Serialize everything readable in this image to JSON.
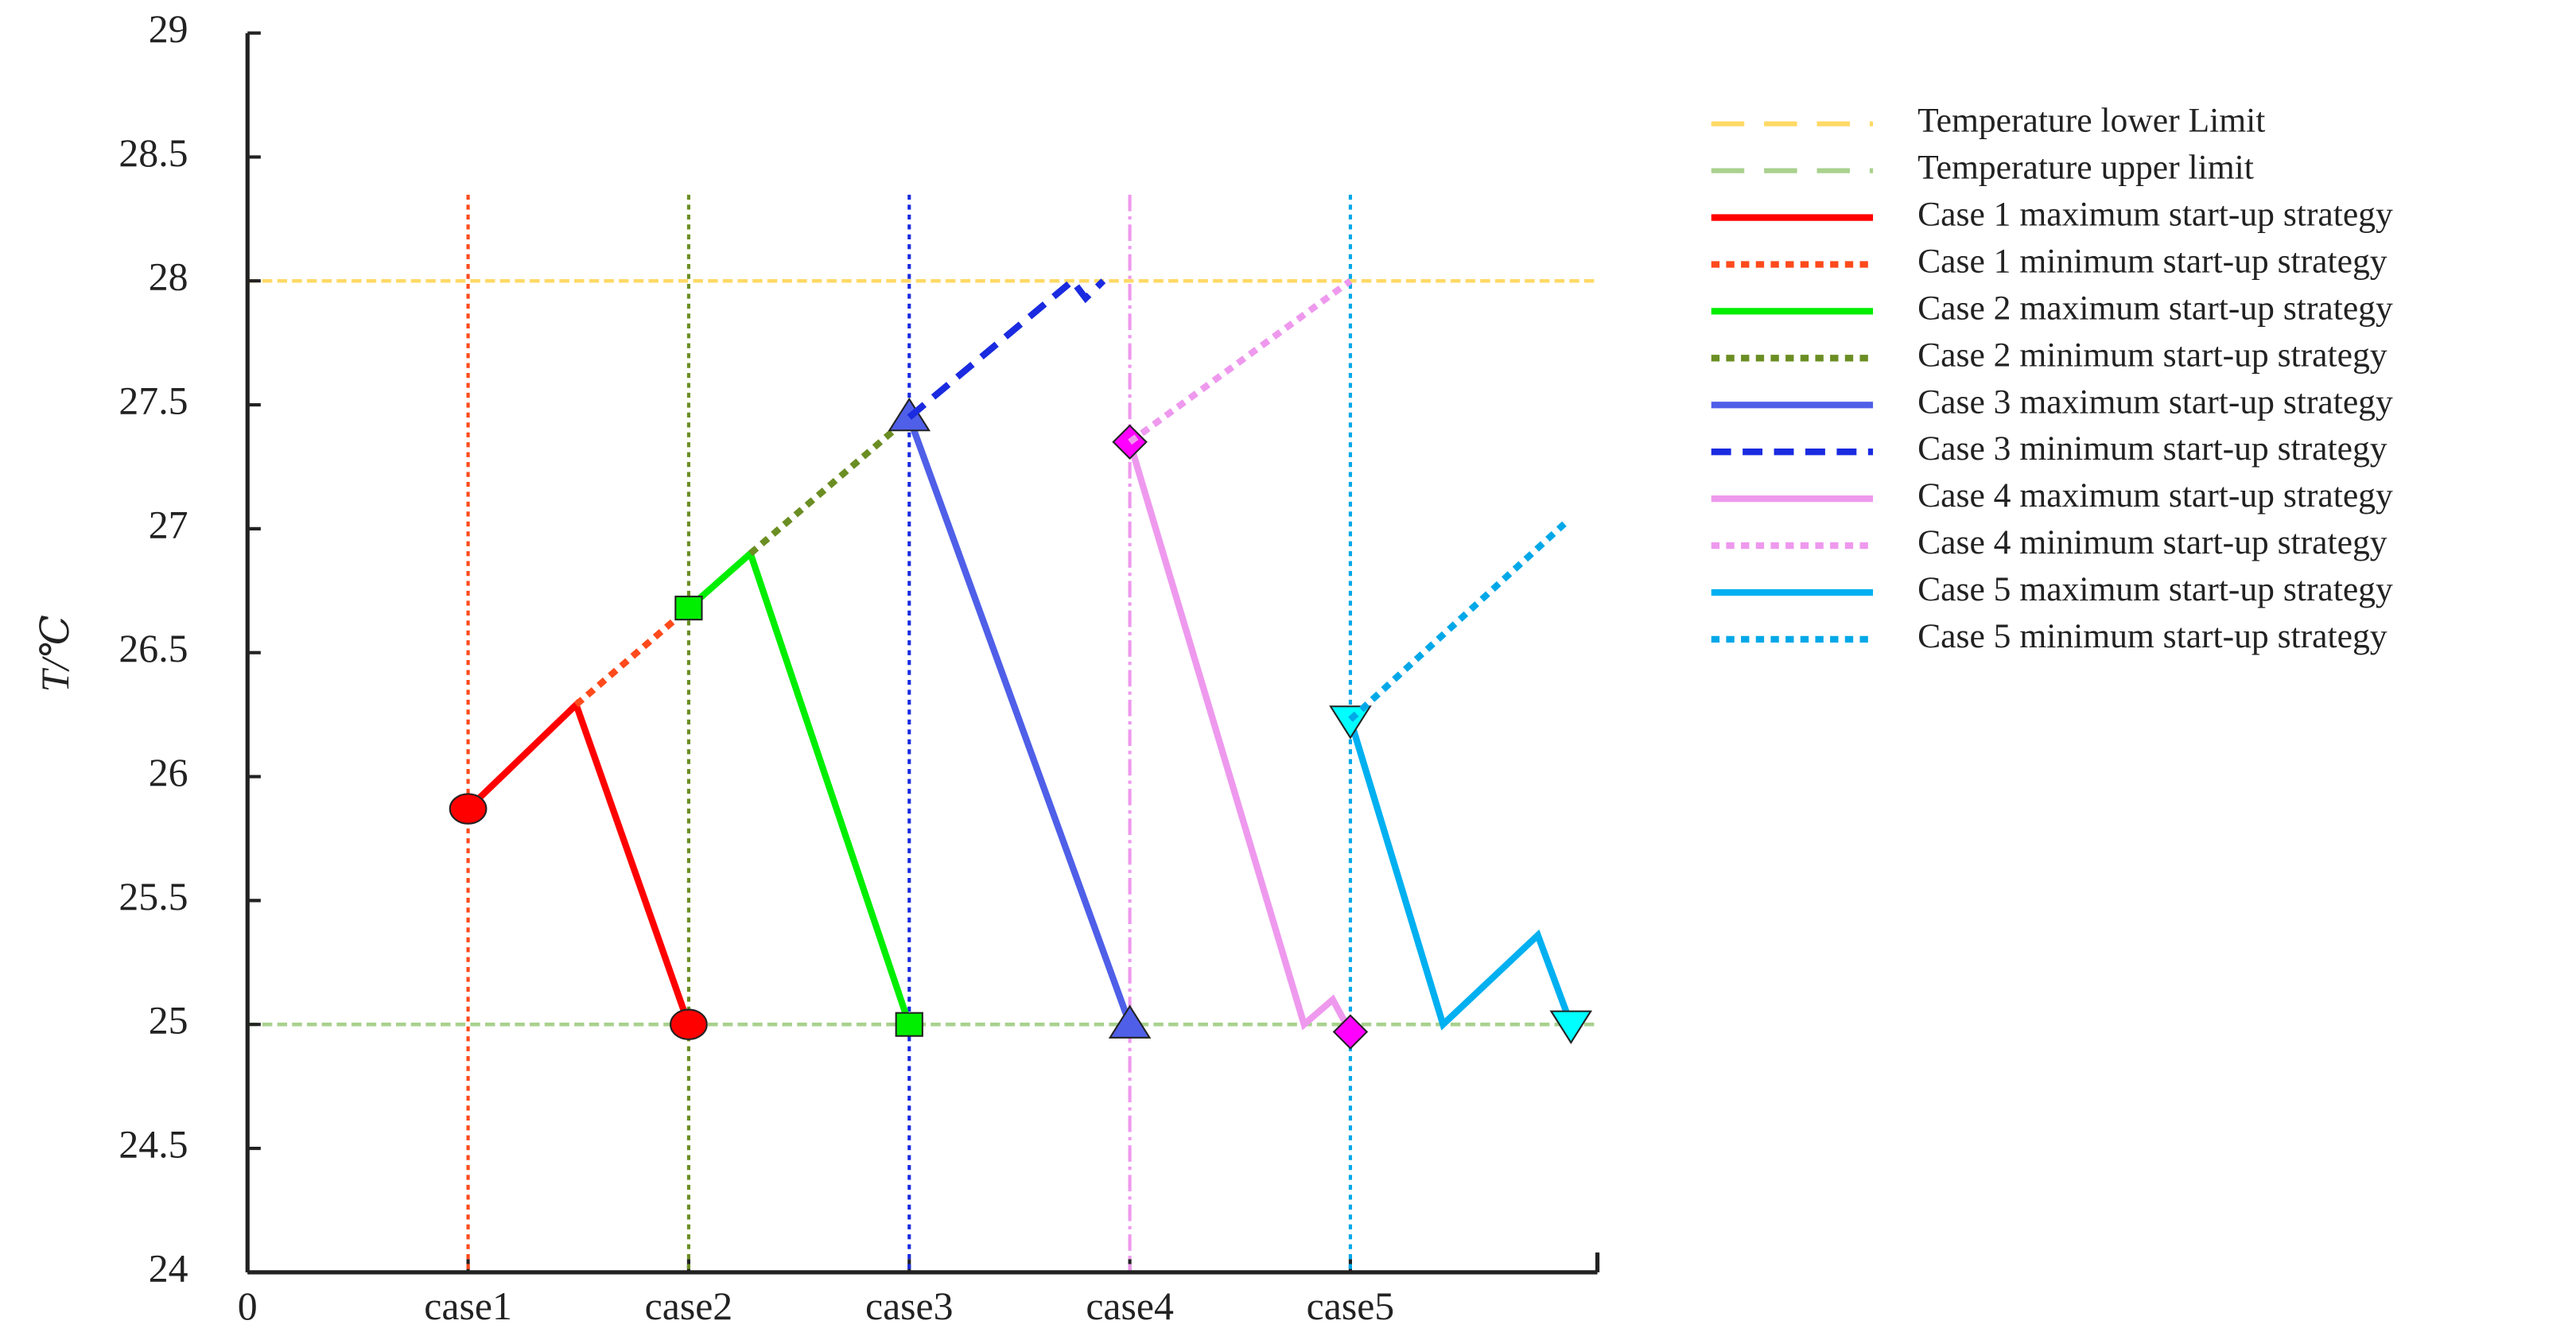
{
  "chart_data": {
    "type": "line",
    "y_label": "T/℃",
    "xlim": [
      0,
      6.12
    ],
    "xticks": [
      0,
      {
        "value": 1,
        "label": "case1"
      },
      {
        "value": 2,
        "label": "case2"
      },
      {
        "value": 3,
        "label": "case3"
      },
      {
        "value": 4,
        "label": "case4"
      },
      {
        "value": 5,
        "label": "case5"
      }
    ],
    "ylim": [
      24,
      29
    ],
    "yticks": [
      24,
      24.5,
      25,
      25.5,
      26,
      26.5,
      27,
      27.5,
      28,
      28.5,
      29
    ],
    "grid": false,
    "legend": "right",
    "reference_lines": [
      {
        "name": "Temperature lower Limit",
        "color": "#ffd966",
        "value": 28,
        "dash": "dashed"
      },
      {
        "name": "Temperature upper limit",
        "color": "#a9d18e",
        "value": 25,
        "dash": "dashed"
      }
    ],
    "series": [
      {
        "name": "Case 1 maximum start-up strategy",
        "color": "#ff0000",
        "dash": "solid",
        "marker": "circle",
        "marker_color": "#ff0000",
        "x": [
          1,
          1.49,
          2
        ],
        "values": [
          25.87,
          26.29,
          25.0
        ]
      },
      {
        "name": "Case 1 minimum start-up strategy",
        "color": "#ff4a1c",
        "dash": "dotted",
        "x": [
          1.49,
          2
        ],
        "values": [
          26.29,
          26.68
        ]
      },
      {
        "name": "Case 2  maximum start-up strategy",
        "color": "#00ee00",
        "dash": "solid",
        "marker": "square",
        "marker_color": "#00ee00",
        "x": [
          2,
          2.28,
          3
        ],
        "values": [
          26.68,
          26.9,
          25.0
        ]
      },
      {
        "name": "Case 2 minimum start-up strategy",
        "color": "#6b8e23",
        "dash": "dotted",
        "x": [
          2.28,
          3
        ],
        "values": [
          26.9,
          27.45
        ]
      },
      {
        "name": "Case 3 maximum start-up strategy",
        "color": "#4f5fe8",
        "dash": "solid",
        "marker": "triangle",
        "marker_color": "#4f5fe8",
        "x": [
          3,
          4
        ],
        "values": [
          27.45,
          25.0
        ]
      },
      {
        "name": "Case 3 minimum start-up strategy",
        "color": "#1a2be0",
        "dash": "dashed",
        "x": [
          3,
          3.74,
          3.8,
          3.88
        ],
        "values": [
          27.45,
          28.0,
          27.93,
          28.0
        ]
      },
      {
        "name": "Case 4 maximum start-up strategy",
        "color": "#ee99ee",
        "dash": "solid",
        "marker": "diamond",
        "marker_color": "#ff00ff",
        "x": [
          4,
          4.79,
          4.92,
          5
        ],
        "values": [
          27.35,
          25.0,
          25.1,
          24.97
        ]
      },
      {
        "name": "Case 4  minimum start-up strategy",
        "color": "#ee99ee",
        "dash": "dotted",
        "x": [
          4,
          5
        ],
        "values": [
          27.35,
          28.0
        ]
      },
      {
        "name": "Case 5 maximum start-up strategy",
        "color": "#00b0f0",
        "dash": "solid",
        "marker": "triangle-down",
        "marker_color": "#00ffff",
        "x": [
          5,
          5.42,
          5.85,
          6.0
        ],
        "values": [
          26.23,
          25.0,
          25.36,
          25.0
        ]
      },
      {
        "name": "Case 5 minimum start-up strategy",
        "color": "#00a8e8",
        "dash": "dotted",
        "x": [
          5,
          5.97
        ],
        "values": [
          26.23,
          27.02
        ]
      }
    ]
  }
}
